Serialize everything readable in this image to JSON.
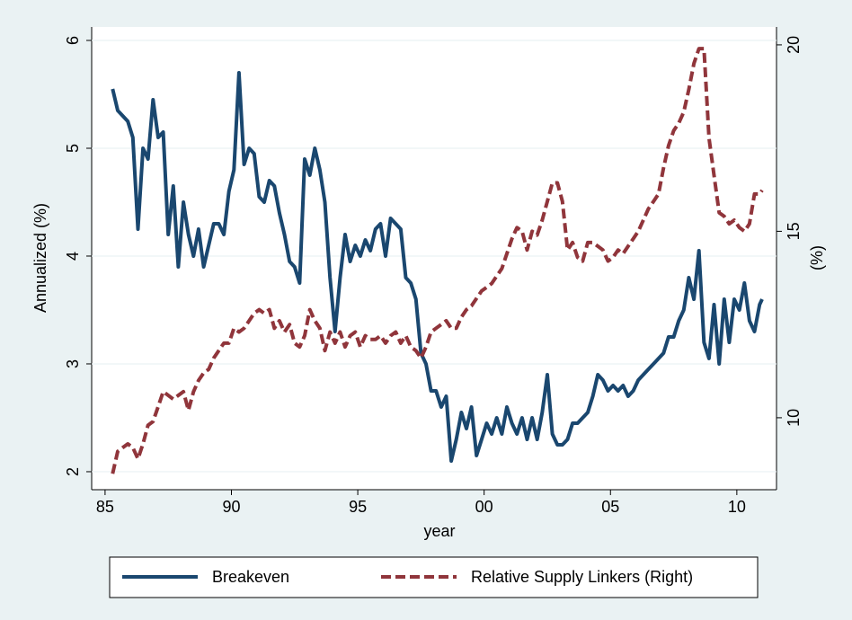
{
  "chart_data": {
    "type": "line",
    "xlabel": "year",
    "ylabel": "Annualized (%)",
    "y2label": "(%)",
    "xlim": [
      1984.47,
      2011.57
    ],
    "xticks": [
      {
        "value": 1985,
        "label": "85"
      },
      {
        "value": 1990,
        "label": "90"
      },
      {
        "value": 1995,
        "label": "95"
      },
      {
        "value": 2000,
        "label": "00"
      },
      {
        "value": 2005,
        "label": "05"
      },
      {
        "value": 2010,
        "label": "10"
      }
    ],
    "ylim": [
      1.833,
      6.125
    ],
    "yticks": [
      2,
      3,
      4,
      5,
      6
    ],
    "y2lim": [
      8.07,
      20.48
    ],
    "y2ticks": [
      10,
      15,
      20
    ],
    "grid": true,
    "legend": "bottom",
    "x": [
      1985.3,
      1985.5,
      1985.7,
      1985.9,
      1986.1,
      1986.3,
      1986.5,
      1986.7,
      1986.9,
      1987.1,
      1987.3,
      1987.5,
      1987.7,
      1987.9,
      1988.1,
      1988.3,
      1988.5,
      1988.7,
      1988.9,
      1989.1,
      1989.3,
      1989.5,
      1989.7,
      1989.9,
      1990.1,
      1990.3,
      1990.5,
      1990.7,
      1990.9,
      1991.1,
      1991.3,
      1991.5,
      1991.7,
      1991.9,
      1992.1,
      1992.3,
      1992.5,
      1992.7,
      1992.9,
      1993.1,
      1993.3,
      1993.5,
      1993.7,
      1993.9,
      1994.1,
      1994.3,
      1994.5,
      1994.7,
      1994.9,
      1995.1,
      1995.3,
      1995.5,
      1995.7,
      1995.9,
      1996.1,
      1996.3,
      1996.5,
      1996.7,
      1996.9,
      1997.1,
      1997.3,
      1997.5,
      1997.7,
      1997.9,
      1998.1,
      1998.3,
      1998.5,
      1998.7,
      1998.9,
      1999.1,
      1999.3,
      1999.5,
      1999.7,
      1999.9,
      2000.1,
      2000.3,
      2000.5,
      2000.7,
      2000.9,
      2001.1,
      2001.3,
      2001.5,
      2001.7,
      2001.9,
      2002.1,
      2002.3,
      2002.5,
      2002.7,
      2002.9,
      2003.1,
      2003.3,
      2003.5,
      2003.7,
      2003.9,
      2004.1,
      2004.3,
      2004.5,
      2004.7,
      2004.9,
      2005.1,
      2005.3,
      2005.5,
      2005.7,
      2005.9,
      2006.1,
      2006.3,
      2006.5,
      2006.7,
      2006.9,
      2007.1,
      2007.3,
      2007.5,
      2007.7,
      2007.9,
      2008.1,
      2008.3,
      2008.5,
      2008.7,
      2008.9,
      2009.1,
      2009.3,
      2009.5,
      2009.7,
      2009.9,
      2010.1,
      2010.3,
      2010.5,
      2010.7,
      2010.9,
      2011.0
    ],
    "series": [
      {
        "name": "Breakeven",
        "color": "#1a476f",
        "style": "solid",
        "axis": "y",
        "values": [
          5.55,
          5.35,
          5.3,
          5.25,
          5.1,
          4.25,
          5.0,
          4.9,
          5.45,
          5.1,
          5.15,
          4.2,
          4.65,
          3.9,
          4.5,
          4.2,
          4.0,
          4.25,
          3.9,
          4.1,
          4.3,
          4.3,
          4.2,
          4.6,
          4.8,
          5.7,
          4.85,
          5.0,
          4.95,
          4.55,
          4.5,
          4.7,
          4.65,
          4.4,
          4.2,
          3.95,
          3.9,
          3.75,
          4.9,
          4.75,
          5.0,
          4.8,
          4.5,
          3.8,
          3.3,
          3.8,
          4.2,
          3.95,
          4.1,
          4.0,
          4.15,
          4.05,
          4.25,
          4.3,
          4.0,
          4.35,
          4.3,
          4.25,
          3.8,
          3.75,
          3.6,
          3.1,
          3.0,
          2.75,
          2.75,
          2.6,
          2.7,
          2.1,
          2.3,
          2.55,
          2.4,
          2.6,
          2.15,
          2.3,
          2.45,
          2.35,
          2.5,
          2.35,
          2.6,
          2.45,
          2.35,
          2.5,
          2.3,
          2.5,
          2.3,
          2.55,
          2.9,
          2.35,
          2.25,
          2.25,
          2.3,
          2.45,
          2.45,
          2.5,
          2.55,
          2.7,
          2.9,
          2.85,
          2.75,
          2.8,
          2.75,
          2.8,
          2.7,
          2.75,
          2.85,
          2.9,
          2.95,
          3.0,
          3.05,
          3.1,
          3.25,
          3.25,
          3.4,
          3.5,
          3.8,
          3.6,
          4.05,
          3.2,
          3.05,
          3.55,
          3.0,
          3.6,
          3.2,
          3.6,
          3.5,
          3.75,
          3.4,
          3.3,
          3.55,
          3.6
        ]
      },
      {
        "name": "Relative Supply Linkers (Right)",
        "color": "#90353b",
        "style": "dashed",
        "axis": "y2",
        "values": [
          8.5,
          9.1,
          9.2,
          9.3,
          9.2,
          8.9,
          9.3,
          9.8,
          9.9,
          10.3,
          10.7,
          10.6,
          10.5,
          10.6,
          10.7,
          10.2,
          10.7,
          11.0,
          11.2,
          11.3,
          11.6,
          11.8,
          12.0,
          12.0,
          12.4,
          12.3,
          12.4,
          12.6,
          12.8,
          12.9,
          12.8,
          12.9,
          12.4,
          12.6,
          12.3,
          12.5,
          12.0,
          11.9,
          12.2,
          12.9,
          12.6,
          12.4,
          11.8,
          12.3,
          12.0,
          12.3,
          11.9,
          12.2,
          12.3,
          11.9,
          12.2,
          12.1,
          12.1,
          12.2,
          12.0,
          12.2,
          12.3,
          12.0,
          12.2,
          11.9,
          11.8,
          11.6,
          11.9,
          12.3,
          12.4,
          12.5,
          12.6,
          12.4,
          12.4,
          12.7,
          12.9,
          13.0,
          13.2,
          13.4,
          13.5,
          13.6,
          13.8,
          14.0,
          14.4,
          14.8,
          15.1,
          15.0,
          14.5,
          15.0,
          14.9,
          15.3,
          15.8,
          16.3,
          16.3,
          15.8,
          14.5,
          14.7,
          14.3,
          14.2,
          14.7,
          14.7,
          14.6,
          14.5,
          14.2,
          14.3,
          14.5,
          14.4,
          14.6,
          14.8,
          15.0,
          15.3,
          15.6,
          15.8,
          16.0,
          16.7,
          17.3,
          17.7,
          17.9,
          18.2,
          18.8,
          19.5,
          19.9,
          19.9,
          17.5,
          16.5,
          15.5,
          15.4,
          15.2,
          15.3,
          15.1,
          15.0,
          15.2,
          16.0,
          16.0,
          16.1
        ]
      }
    ]
  }
}
